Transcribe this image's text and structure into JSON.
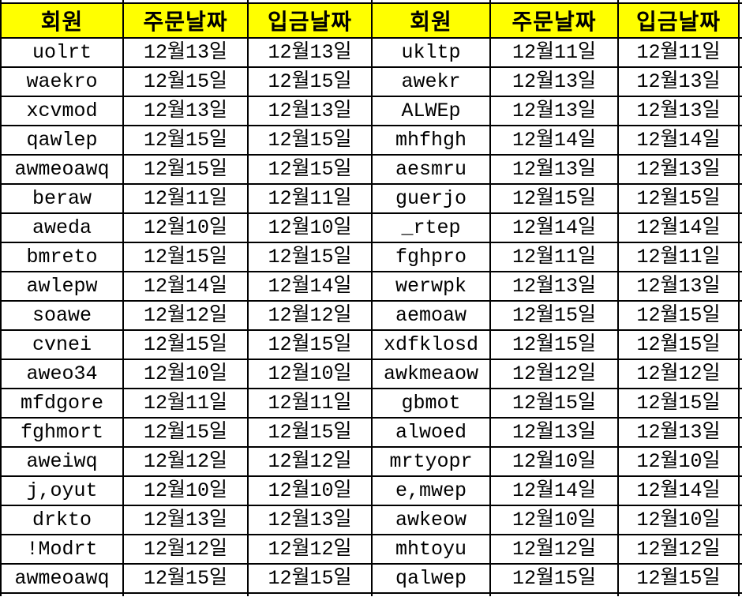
{
  "app": {
    "type": "spreadsheet-data-table"
  },
  "colors": {
    "header_bg": "#ffff00",
    "border": "#000000",
    "text": "#000000",
    "background": "#ffffff"
  },
  "table": {
    "headers": [
      "회원",
      "주문날짜",
      "입금날짜",
      "회원",
      "주문날짜",
      "입금날짜"
    ],
    "rows": [
      [
        "uolrt",
        "12월13일",
        "12월13일",
        "ukltp",
        "12월11일",
        "12월11일"
      ],
      [
        "waekro",
        "12월15일",
        "12월15일",
        "awekr",
        "12월13일",
        "12월13일"
      ],
      [
        "xcvmod",
        "12월13일",
        "12월13일",
        "ALWEp",
        "12월13일",
        "12월13일"
      ],
      [
        "qawlep",
        "12월15일",
        "12월15일",
        "mhfhgh",
        "12월14일",
        "12월14일"
      ],
      [
        "awmeoawq",
        "12월15일",
        "12월15일",
        "aesmru",
        "12월13일",
        "12월13일"
      ],
      [
        "beraw",
        "12월11일",
        "12월11일",
        "guerjo",
        "12월15일",
        "12월15일"
      ],
      [
        "aweda",
        "12월10일",
        "12월10일",
        "_rtep",
        "12월14일",
        "12월14일"
      ],
      [
        "bmreto",
        "12월15일",
        "12월15일",
        "fghpro",
        "12월11일",
        "12월11일"
      ],
      [
        "awlepw",
        "12월14일",
        "12월14일",
        "werwpk",
        "12월13일",
        "12월13일"
      ],
      [
        "soawe",
        "12월12일",
        "12월12일",
        "aemoaw",
        "12월15일",
        "12월15일"
      ],
      [
        "cvnei",
        "12월15일",
        "12월15일",
        "xdfklosd",
        "12월15일",
        "12월15일"
      ],
      [
        "aweo34",
        "12월10일",
        "12월10일",
        "awkmeaow",
        "12월12일",
        "12월12일"
      ],
      [
        "mfdgore",
        "12월11일",
        "12월11일",
        "gbmot",
        "12월15일",
        "12월15일"
      ],
      [
        "fghmort",
        "12월15일",
        "12월15일",
        "alwoed",
        "12월13일",
        "12월13일"
      ],
      [
        "aweiwq",
        "12월12일",
        "12월12일",
        "mrtyopr",
        "12월10일",
        "12월10일"
      ],
      [
        "j,oyut",
        "12월10일",
        "12월10일",
        "e,mwep",
        "12월14일",
        "12월14일"
      ],
      [
        "drkto",
        "12월13일",
        "12월13일",
        "awkeow",
        "12월10일",
        "12월10일"
      ],
      [
        "!Modrt",
        "12월12일",
        "12월12일",
        "mhtoyu",
        "12월12일",
        "12월12일"
      ],
      [
        "awmeoawq",
        "12월15일",
        "12월15일",
        "qalwep",
        "12월15일",
        "12월15일"
      ]
    ]
  }
}
